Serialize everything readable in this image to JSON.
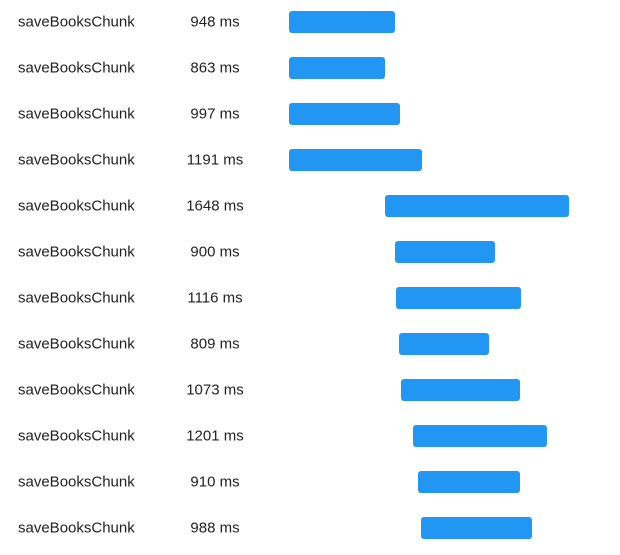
{
  "colors": {
    "bar": "#2196f3",
    "text": "#222222"
  },
  "unit_suffix": "ms",
  "spans": [
    {
      "name": "saveBooksChunk",
      "duration_label": "948 ms",
      "duration_ms": 948,
      "start_ms": 0
    },
    {
      "name": "saveBooksChunk",
      "duration_label": "863 ms",
      "duration_ms": 863,
      "start_ms": 0
    },
    {
      "name": "saveBooksChunk",
      "duration_label": "997 ms",
      "duration_ms": 997,
      "start_ms": 0
    },
    {
      "name": "saveBooksChunk",
      "duration_label": "1191 ms",
      "duration_ms": 1191,
      "start_ms": 0
    },
    {
      "name": "saveBooksChunk",
      "duration_label": "1648 ms",
      "duration_ms": 1648,
      "start_ms": 864
    },
    {
      "name": "saveBooksChunk",
      "duration_label": "900 ms",
      "duration_ms": 900,
      "start_ms": 948
    },
    {
      "name": "saveBooksChunk",
      "duration_label": "1116 ms",
      "duration_ms": 1116,
      "start_ms": 961
    },
    {
      "name": "saveBooksChunk",
      "duration_label": "809 ms",
      "duration_ms": 809,
      "start_ms": 988
    },
    {
      "name": "saveBooksChunk",
      "duration_label": "1073 ms",
      "duration_ms": 1073,
      "start_ms": 1002
    },
    {
      "name": "saveBooksChunk",
      "duration_label": "1201 ms",
      "duration_ms": 1201,
      "start_ms": 1109
    },
    {
      "name": "saveBooksChunk",
      "duration_label": "910 ms",
      "duration_ms": 910,
      "start_ms": 1161
    },
    {
      "name": "saveBooksChunk",
      "duration_label": "988 ms",
      "duration_ms": 988,
      "start_ms": 1187
    }
  ]
}
